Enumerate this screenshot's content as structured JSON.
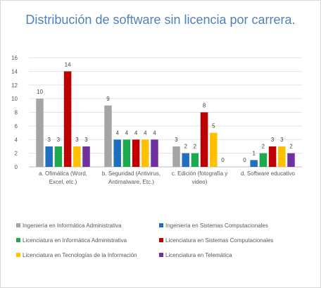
{
  "chart_data": {
    "type": "bar",
    "title": "Distribución de software sin licencia por carrera.",
    "categories": [
      [
        "a. Ofimática (Word,",
        "Excel, etc.)"
      ],
      [
        "b. Seguridad (Antivirus,",
        "Antimalware, Etc.)"
      ],
      [
        "c. Edición (fotografía y",
        "video)"
      ],
      [
        "d. Software educativo"
      ]
    ],
    "series": [
      {
        "name": "Ingeniería en Informática Administrativa",
        "color": "#a5a5a5",
        "values": [
          10,
          9,
          3,
          0
        ]
      },
      {
        "name": "Ingeniería en Sistemas Computacionales",
        "color": "#1f6fbf",
        "values": [
          3,
          4,
          2,
          1
        ]
      },
      {
        "name": "Licenciatura en Informática Administrativa",
        "color": "#1daa4e",
        "values": [
          3,
          4,
          2,
          2
        ]
      },
      {
        "name": "Licenciatura en Sistemas Computacionales",
        "color": "#c00000",
        "values": [
          14,
          4,
          8,
          3
        ]
      },
      {
        "name": "Licenciatura en Tecnologías de la Información",
        "color": "#ffc000",
        "values": [
          3,
          4,
          5,
          3
        ]
      },
      {
        "name": "Licenciatura en Telemática",
        "color": "#7030a0",
        "values": [
          3,
          4,
          0,
          2
        ]
      }
    ],
    "ylim": [
      0,
      16
    ],
    "yticks": [
      0,
      2,
      4,
      6,
      8,
      10,
      12,
      14,
      16
    ],
    "grid": true,
    "legend": "bottom"
  }
}
